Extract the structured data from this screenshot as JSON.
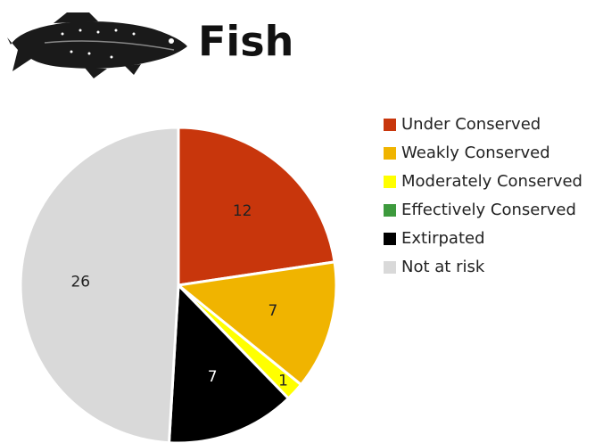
{
  "chart_data": {
    "type": "pie",
    "title": "Fish",
    "categories": [
      "Under Conserved",
      "Weakly Conserved",
      "Moderately Conserved",
      "Effectively Conserved",
      "Extirpated",
      "Not at risk"
    ],
    "values": [
      12,
      7,
      1,
      0,
      7,
      26
    ],
    "colors": [
      "#c8360c",
      "#f0b400",
      "#ffff00",
      "#3d9a3d",
      "#000000",
      "#d9d9d9"
    ],
    "legend": "right"
  }
}
